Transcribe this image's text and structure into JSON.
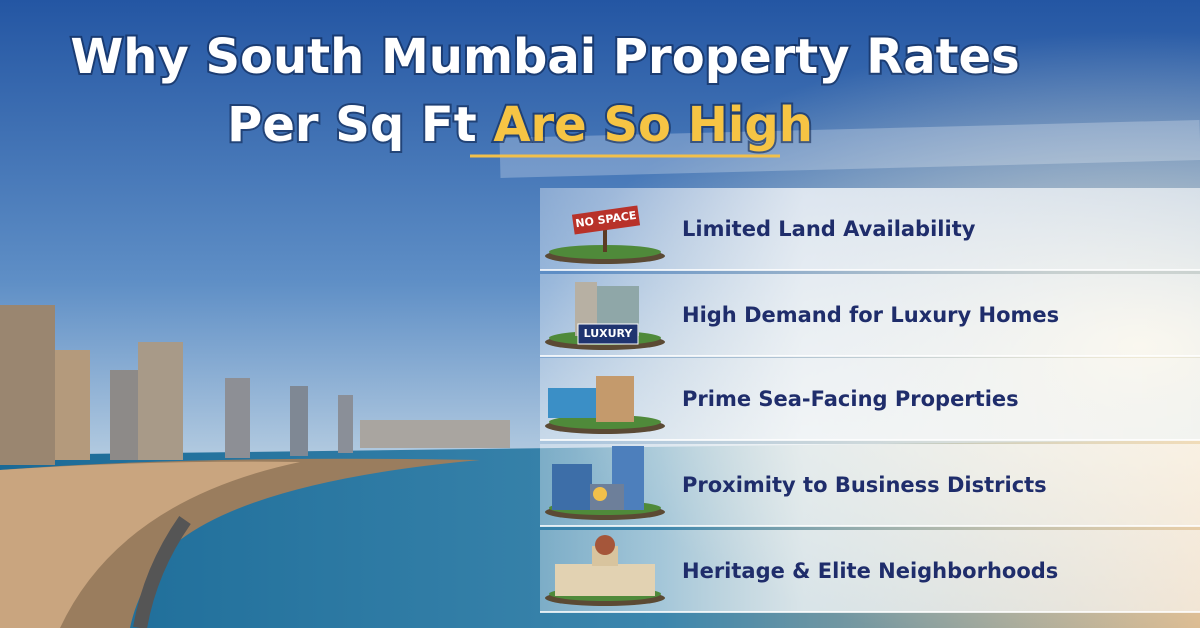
{
  "header": {
    "title_line1": "Why South Mumbai Property Rates",
    "title_line2": "Per Sq Ft",
    "title_highlight": "Are So High"
  },
  "items": [
    {
      "label": "Limited Land Availability",
      "sign": "NO SPACE"
    },
    {
      "label": "High Demand for Luxury Homes",
      "sign": "LUXURY"
    },
    {
      "label": "Prime Sea-Facing Properties"
    },
    {
      "label": "Proximity to Business Districts"
    },
    {
      "label": "Heritage & Elite Neighborhoods"
    }
  ]
}
